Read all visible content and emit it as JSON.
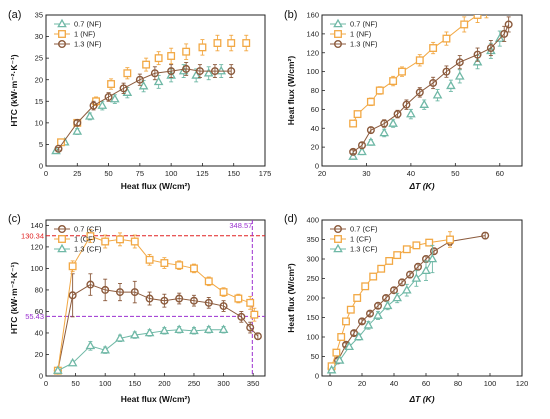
{
  "colors": {
    "c07": "#6fb8a6",
    "c1": "#f2a844",
    "c13": "#8b5a3c",
    "red": "#e02020",
    "purple": "#9b30d0"
  },
  "chart_data": [
    {
      "id": "a",
      "panel_label": "(a)",
      "type": "scatter",
      "xlabel": "Heat flux (W/cm²)",
      "ylabel": "HTC (kW·m⁻²·K⁻¹)",
      "xlim": [
        0,
        175
      ],
      "ylim": [
        0,
        35
      ],
      "xticks": [
        0,
        25,
        50,
        75,
        100,
        125,
        150,
        175
      ],
      "yticks": [
        0,
        5,
        10,
        15,
        20,
        25,
        30,
        35
      ],
      "legend_position": "top-left",
      "series": [
        {
          "name": "0.7 (NF)",
          "marker": "triangle",
          "color": "#6fb8a6",
          "line": false,
          "x": [
            8,
            15,
            25,
            35,
            45,
            55,
            65,
            78,
            90,
            100,
            110,
            120,
            130,
            140
          ],
          "y": [
            3.5,
            5.5,
            8.0,
            11.5,
            14.0,
            15.5,
            17.0,
            18.5,
            19.5,
            21.0,
            22.0,
            21.0,
            21.5,
            22.0
          ],
          "err": [
            0.3,
            0.5,
            0.7,
            0.8,
            1.0,
            1.0,
            1.2,
            1.3,
            1.5,
            1.5,
            1.5,
            1.5,
            1.5,
            1.5
          ]
        },
        {
          "name": "1 (NF)",
          "marker": "square",
          "color": "#f2a844",
          "line": false,
          "x": [
            12,
            25,
            40,
            52,
            65,
            80,
            90,
            100,
            112,
            125,
            137,
            148,
            160
          ],
          "y": [
            5.5,
            10.0,
            15.0,
            19.0,
            21.5,
            23.5,
            25.0,
            25.5,
            26.5,
            27.5,
            28.5,
            28.5,
            28.5
          ],
          "err": [
            0.5,
            0.7,
            1.0,
            1.2,
            1.3,
            1.5,
            1.5,
            1.8,
            1.8,
            1.8,
            1.8,
            1.8,
            1.8
          ]
        },
        {
          "name": "1.3 (NF)",
          "marker": "circle",
          "color": "#8b5a3c",
          "line": true,
          "x": [
            10,
            25,
            38,
            50,
            62,
            75,
            87,
            100,
            112,
            123,
            135,
            148
          ],
          "y": [
            4.0,
            10.0,
            14.0,
            16.0,
            18.0,
            20.0,
            21.5,
            22.0,
            22.5,
            22.0,
            22.0,
            22.0
          ],
          "err": [
            0.3,
            0.6,
            1.0,
            1.0,
            1.2,
            1.3,
            1.5,
            1.5,
            1.5,
            1.5,
            1.5,
            1.5
          ]
        }
      ]
    },
    {
      "id": "b",
      "panel_label": "(b)",
      "type": "scatter",
      "xlabel": "ΔT (K)",
      "ylabel": "Heat flux (W/cm²)",
      "xlim": [
        20,
        65
      ],
      "ylim": [
        0,
        160
      ],
      "xticks": [
        20,
        30,
        40,
        50,
        60
      ],
      "yticks": [
        0,
        20,
        40,
        60,
        80,
        100,
        120,
        140,
        160
      ],
      "legend_position": "top-left",
      "series": [
        {
          "name": "0.7 (NF)",
          "marker": "triangle",
          "color": "#6fb8a6",
          "line": false,
          "x": [
            27,
            29,
            31,
            34,
            36,
            40,
            43,
            46,
            49,
            51,
            55,
            58,
            60
          ],
          "y": [
            10,
            15,
            25,
            35,
            45,
            55,
            65,
            75,
            85,
            95,
            110,
            122,
            135
          ],
          "err": [
            2,
            3,
            3,
            4,
            4,
            5,
            5,
            6,
            6,
            7,
            7,
            8,
            8
          ]
        },
        {
          "name": "1 (NF)",
          "marker": "square",
          "color": "#f2a844",
          "line": true,
          "x": [
            27,
            28,
            31,
            33,
            36,
            38,
            42,
            45,
            48,
            52,
            55,
            57
          ],
          "y": [
            45,
            55,
            68,
            80,
            90,
            100,
            112,
            125,
            135,
            150,
            160,
            165
          ],
          "err": [
            3,
            3,
            4,
            4,
            5,
            5,
            6,
            6,
            7,
            8,
            8,
            8
          ]
        },
        {
          "name": "1.3 (NF)",
          "marker": "circle",
          "color": "#8b5a3c",
          "line": true,
          "x": [
            27,
            29,
            31,
            34,
            37,
            39,
            42,
            45,
            48,
            51,
            55,
            58,
            61,
            62
          ],
          "y": [
            15,
            22,
            38,
            45,
            55,
            65,
            78,
            88,
            100,
            110,
            118,
            125,
            140,
            150
          ],
          "err": [
            2,
            3,
            3,
            4,
            4,
            5,
            5,
            6,
            6,
            7,
            7,
            8,
            8,
            8
          ]
        }
      ]
    },
    {
      "id": "c",
      "panel_label": "(c)",
      "type": "scatter",
      "xlabel": "Heat flux (W/cm²)",
      "ylabel": "HTC (kW·m⁻²·K⁻¹)",
      "xlim": [
        0,
        370
      ],
      "ylim": [
        0,
        145
      ],
      "xticks": [
        0,
        50,
        100,
        150,
        200,
        250,
        300,
        350
      ],
      "yticks": [
        0,
        20,
        40,
        60,
        80,
        100,
        120,
        140
      ],
      "legend_position": "top-left",
      "series": [
        {
          "name": "0.7 (CF)",
          "marker": "circle",
          "color": "#8b5a3c",
          "line": true,
          "x": [
            20,
            45,
            75,
            100,
            125,
            150,
            175,
            200,
            225,
            250,
            275,
            300,
            330,
            345,
            358
          ],
          "y": [
            5,
            75,
            85,
            80,
            78,
            78,
            72,
            70,
            72,
            70,
            68,
            65,
            55,
            45,
            37
          ],
          "err": [
            1,
            20,
            10,
            10,
            8,
            10,
            6,
            6,
            5,
            5,
            5,
            5,
            5,
            5,
            3
          ]
        },
        {
          "name": "1 (CF)",
          "marker": "square",
          "color": "#f2a844",
          "line": true,
          "x": [
            20,
            45,
            75,
            100,
            125,
            150,
            175,
            200,
            225,
            250,
            275,
            300,
            325,
            345,
            352
          ],
          "y": [
            5,
            102,
            130,
            125,
            127,
            125,
            108,
            105,
            103,
            100,
            88,
            78,
            72,
            68,
            57
          ],
          "err": [
            1,
            5,
            6,
            6,
            6,
            6,
            5,
            5,
            4,
            4,
            4,
            4,
            4,
            6,
            6
          ]
        },
        {
          "name": "1.3 (CF)",
          "marker": "triangle",
          "color": "#6fb8a6",
          "line": true,
          "x": [
            20,
            45,
            75,
            100,
            125,
            150,
            175,
            200,
            225,
            250,
            275,
            300
          ],
          "y": [
            5,
            12,
            28,
            24,
            35,
            38,
            40,
            42,
            43,
            42,
            43,
            43
          ],
          "err": [
            1,
            2,
            4,
            3,
            3,
            3,
            3,
            3,
            3,
            3,
            3,
            3
          ]
        }
      ],
      "annotations": {
        "hline_red": {
          "y": 130.34,
          "label": "130.34"
        },
        "hline_purple": {
          "y": 55.43,
          "label": "55.43"
        },
        "vline_purple": {
          "x": 348.57,
          "label": "348.57"
        }
      }
    },
    {
      "id": "d",
      "panel_label": "(d)",
      "type": "scatter",
      "xlabel": "ΔT (K)",
      "ylabel": "Heat flux (W/cm²)",
      "xlim": [
        -5,
        120
      ],
      "ylim": [
        0,
        400
      ],
      "xticks": [
        0,
        20,
        40,
        60,
        80,
        100,
        120
      ],
      "yticks": [
        0,
        50,
        100,
        150,
        200,
        250,
        300,
        350,
        400
      ],
      "legend_position": "top-left",
      "series": [
        {
          "name": "0.7 (CF)",
          "marker": "circle",
          "color": "#8b5a3c",
          "line": true,
          "x": [
            1,
            5,
            10,
            15,
            20,
            25,
            30,
            35,
            40,
            45,
            50,
            55,
            60,
            65,
            75,
            97
          ],
          "y": [
            20,
            40,
            80,
            110,
            140,
            160,
            180,
            200,
            220,
            240,
            260,
            280,
            300,
            320,
            345,
            360
          ],
          "err": [
            3,
            4,
            5,
            6,
            6,
            6,
            7,
            7,
            7,
            8,
            8,
            8,
            8,
            8,
            10,
            8
          ]
        },
        {
          "name": "1 (CF)",
          "marker": "square",
          "color": "#f2a844",
          "line": true,
          "x": [
            1,
            4,
            7,
            10,
            13,
            17,
            22,
            27,
            32,
            37,
            42,
            48,
            54,
            62,
            75
          ],
          "y": [
            25,
            60,
            100,
            140,
            170,
            200,
            230,
            255,
            275,
            295,
            310,
            325,
            335,
            342,
            350
          ],
          "err": [
            3,
            4,
            5,
            6,
            6,
            7,
            7,
            7,
            7,
            8,
            8,
            8,
            8,
            8,
            20
          ]
        },
        {
          "name": "1.3 (CF)",
          "marker": "triangle",
          "color": "#6fb8a6",
          "line": true,
          "x": [
            1,
            6,
            12,
            18,
            24,
            30,
            36,
            42,
            48,
            54,
            60,
            64
          ],
          "y": [
            15,
            40,
            75,
            100,
            130,
            155,
            180,
            200,
            220,
            250,
            270,
            300
          ],
          "err": [
            2,
            4,
            6,
            8,
            10,
            10,
            10,
            12,
            15,
            20,
            25,
            35
          ]
        }
      ]
    }
  ]
}
